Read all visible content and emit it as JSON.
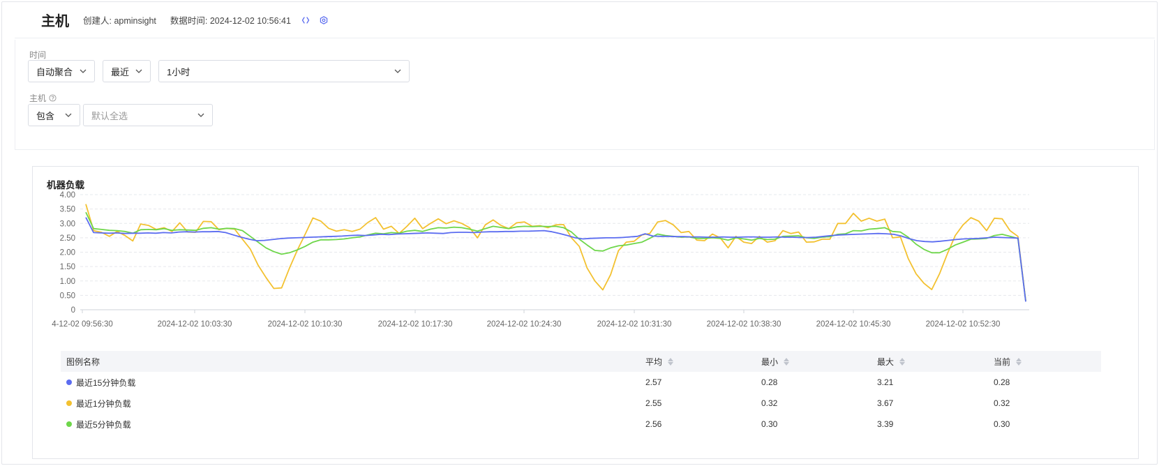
{
  "header": {
    "title": "主机",
    "creator": "创建人: apminsight",
    "data_time": "数据时间: 2024-12-02 10:56:41",
    "icons": [
      "refresh-icon",
      "settings-icon"
    ],
    "accent_color": "#5b6cf0"
  },
  "filters": {
    "time_label": "时间",
    "aggregation": "自动聚合",
    "range_mode": "最近",
    "range_value": "1小时",
    "host_label": "主机",
    "host_mode": "包含",
    "host_placeholder": "默认全选"
  },
  "card": {
    "title": "机器负载"
  },
  "chart_data": {
    "type": "line",
    "title": "机器负载",
    "ylim": [
      0,
      4
    ],
    "y_ticks": [
      "4.00",
      "3.50",
      "3.00",
      "2.50",
      "2.00",
      "1.50",
      "1.00",
      "0.50",
      "0"
    ],
    "x_tick_labels": [
      "4-12-02 09:56:30",
      "2024-12-02 10:03:30",
      "2024-12-02 10:10:30",
      "2024-12-02 10:17:30",
      "2024-12-02 10:24:30",
      "2024-12-02 10:31:30",
      "2024-12-02 10:38:30",
      "2024-12-02 10:45:30",
      "2024-12-02 10:52:30"
    ],
    "grid": true,
    "series": [
      {
        "name": "最近15分钟负载",
        "color": "#5b6cf0",
        "values": [
          3.21,
          2.68,
          2.67,
          2.66,
          2.67,
          2.65,
          2.66,
          2.66,
          2.67,
          2.66,
          2.68,
          2.67,
          2.7,
          2.71,
          2.7,
          2.71,
          2.71,
          2.72,
          2.68,
          2.6,
          2.52,
          2.45,
          2.4,
          2.41,
          2.44,
          2.47,
          2.49,
          2.5,
          2.51,
          2.52,
          2.53,
          2.54,
          2.55,
          2.56,
          2.58,
          2.59,
          2.58,
          2.6,
          2.62,
          2.61,
          2.63,
          2.64,
          2.65,
          2.66,
          2.67,
          2.66,
          2.65,
          2.68,
          2.69,
          2.69,
          2.68,
          2.7,
          2.71,
          2.71,
          2.72,
          2.72,
          2.73,
          2.73,
          2.74,
          2.75,
          2.71,
          2.65,
          2.58,
          2.5,
          2.46,
          2.48,
          2.49,
          2.5,
          2.5,
          2.51,
          2.53,
          2.55,
          2.64,
          2.56,
          2.55,
          2.55,
          2.54,
          2.54,
          2.53,
          2.53,
          2.52,
          2.52,
          2.53,
          2.52,
          2.52,
          2.53,
          2.53,
          2.52,
          2.52,
          2.53,
          2.52,
          2.52,
          2.51,
          2.51,
          2.52,
          2.55,
          2.58,
          2.6,
          2.61,
          2.62,
          2.63,
          2.64,
          2.65,
          2.64,
          2.62,
          2.56,
          2.47,
          2.4,
          2.37,
          2.36,
          2.38,
          2.41,
          2.44,
          2.46,
          2.47,
          2.48,
          2.5,
          2.52,
          2.51,
          2.5,
          2.49,
          0.28
        ]
      },
      {
        "name": "最近1分钟负载",
        "color": "#f3c130",
        "values": [
          3.67,
          2.75,
          2.69,
          2.55,
          2.72,
          2.58,
          2.39,
          2.98,
          2.93,
          2.79,
          2.85,
          2.72,
          3.02,
          2.7,
          2.69,
          3.07,
          3.06,
          2.78,
          2.83,
          2.8,
          2.45,
          2.11,
          1.55,
          1.12,
          0.74,
          0.76,
          1.45,
          2.07,
          2.62,
          3.19,
          3.08,
          2.83,
          2.73,
          2.78,
          2.72,
          2.8,
          3.03,
          3.2,
          2.8,
          2.9,
          2.65,
          2.9,
          3.18,
          2.82,
          3.0,
          3.16,
          2.99,
          3.09,
          3.0,
          2.85,
          2.5,
          2.95,
          3.12,
          2.93,
          2.82,
          3.02,
          3.05,
          2.9,
          2.92,
          2.85,
          2.95,
          2.96,
          2.5,
          2.2,
          1.45,
          1.0,
          0.69,
          1.22,
          2.05,
          2.35,
          2.38,
          2.6,
          2.65,
          3.05,
          3.1,
          2.95,
          2.68,
          2.72,
          2.42,
          2.4,
          2.63,
          2.5,
          2.15,
          2.55,
          2.35,
          2.3,
          2.55,
          2.35,
          2.4,
          2.75,
          2.65,
          2.7,
          2.35,
          2.36,
          2.45,
          2.45,
          3.0,
          3.0,
          3.35,
          3.08,
          3.18,
          3.08,
          3.15,
          2.5,
          2.53,
          1.78,
          1.25,
          0.92,
          0.7,
          1.25,
          1.95,
          2.58,
          2.95,
          3.2,
          3.08,
          2.75,
          3.18,
          3.16,
          2.75,
          2.55,
          0.32
        ]
      },
      {
        "name": "最近5分钟负载",
        "color": "#6ed64a",
        "values": [
          3.39,
          2.82,
          2.79,
          2.76,
          2.75,
          2.72,
          2.66,
          2.78,
          2.79,
          2.78,
          2.82,
          2.76,
          2.78,
          2.77,
          2.76,
          2.83,
          2.85,
          2.8,
          2.83,
          2.82,
          2.75,
          2.55,
          2.35,
          2.15,
          2.02,
          1.93,
          1.98,
          2.08,
          2.2,
          2.35,
          2.43,
          2.43,
          2.44,
          2.46,
          2.5,
          2.53,
          2.6,
          2.66,
          2.64,
          2.68,
          2.66,
          2.73,
          2.76,
          2.72,
          2.8,
          2.85,
          2.84,
          2.87,
          2.85,
          2.8,
          2.73,
          2.82,
          2.9,
          2.86,
          2.82,
          2.88,
          2.9,
          2.89,
          2.9,
          2.89,
          2.9,
          2.85,
          2.7,
          2.45,
          2.25,
          2.06,
          2.04,
          2.15,
          2.22,
          2.25,
          2.3,
          2.35,
          2.48,
          2.63,
          2.58,
          2.55,
          2.52,
          2.53,
          2.48,
          2.48,
          2.5,
          2.48,
          2.42,
          2.5,
          2.46,
          2.42,
          2.48,
          2.44,
          2.45,
          2.55,
          2.56,
          2.57,
          2.5,
          2.48,
          2.52,
          2.54,
          2.62,
          2.64,
          2.75,
          2.74,
          2.8,
          2.82,
          2.85,
          2.72,
          2.7,
          2.52,
          2.28,
          2.1,
          1.98,
          1.98,
          2.1,
          2.25,
          2.35,
          2.45,
          2.46,
          2.48,
          2.58,
          2.62,
          2.55,
          2.48,
          0.3
        ]
      }
    ]
  },
  "legend_table": {
    "headers": {
      "name": "图例名称",
      "avg": "平均",
      "min": "最小",
      "max": "最大",
      "current": "当前"
    },
    "rows": [
      {
        "name": "最近15分钟负载",
        "color": "#5b6cf0",
        "avg": "2.57",
        "min": "0.28",
        "max": "3.21",
        "current": "0.28"
      },
      {
        "name": "最近1分钟负载",
        "color": "#f3c130",
        "avg": "2.55",
        "min": "0.32",
        "max": "3.67",
        "current": "0.32"
      },
      {
        "name": "最近5分钟负载",
        "color": "#6ed64a",
        "avg": "2.56",
        "min": "0.30",
        "max": "3.39",
        "current": "0.30"
      }
    ]
  }
}
